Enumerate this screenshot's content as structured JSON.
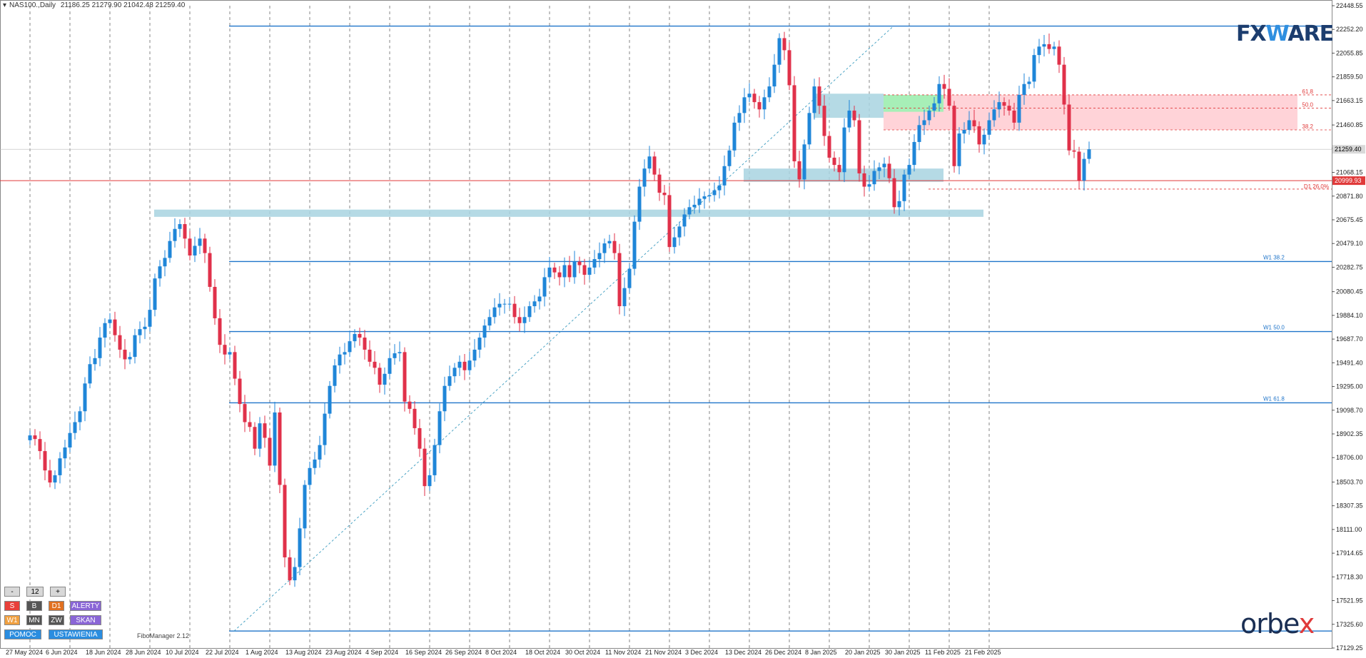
{
  "header": {
    "symbol": "NAS100.,Daily",
    "ohlc": "21186.25 21279.90 21042.48 21259.40"
  },
  "toolbar": {
    "minus": "-",
    "period": "12",
    "plus": "+",
    "row1": [
      {
        "label": "S",
        "color": "#e8403a"
      },
      {
        "label": "B",
        "color": "#555555"
      },
      {
        "label": "D1",
        "color": "#e07020"
      },
      {
        "label": "ALERTY",
        "color": "#8a66d6"
      }
    ],
    "row2": [
      {
        "label": "W1",
        "color": "#f0a040"
      },
      {
        "label": "MN",
        "color": "#555555"
      },
      {
        "label": "ZW",
        "color": "#555555"
      },
      {
        "label": "SKAN",
        "color": "#8a66d6"
      }
    ],
    "row3": [
      {
        "label": "POMOC",
        "color": "#2a8de0"
      },
      {
        "label": "USTAWIENIA",
        "color": "#2a8de0"
      }
    ]
  },
  "footer": {
    "label": "FiboManager 2.12"
  },
  "logos": {
    "fx_pre": "FX",
    "fx_w": "W",
    "fx_post": "ARE",
    "orbex_pre": "orbe",
    "orbex_x": "x"
  },
  "chart_data": {
    "type": "candlestick",
    "symbol": "NAS100.",
    "timeframe": "Daily",
    "ylim": [
      17129.25,
      22448.55
    ],
    "y_ticks": [
      "22448.55",
      "22252.20",
      "22055.85",
      "21859.50",
      "21663.15",
      "21460.85",
      "21268.40",
      "21068.15",
      "20871.80",
      "20675.45",
      "20479.10",
      "20282.75",
      "20080.45",
      "19884.10",
      "19687.70",
      "19491.40",
      "19295.00",
      "19098.70",
      "18902.35",
      "18706.00",
      "18503.70",
      "18307.35",
      "18111.00",
      "17914.65",
      "17718.30",
      "17521.95",
      "17325.60",
      "17129.25"
    ],
    "x_ticks": [
      "27 May 2024",
      "6 Jun 2024",
      "18 Jun 2024",
      "28 Jun 2024",
      "10 Jul 2024",
      "22 Jul 2024",
      "1 Aug 2024",
      "13 Aug 2024",
      "23 Aug 2024",
      "4 Sep 2024",
      "16 Sep 2024",
      "26 Sep 2024",
      "8 Oct 2024",
      "18 Oct 2024",
      "30 Oct 2024",
      "11 Nov 2024",
      "21 Nov 2024",
      "3 Dec 2024",
      "13 Dec 2024",
      "26 Dec 2024",
      "8 Jan 2025",
      "20 Jan 2025",
      "30 Jan 2025",
      "11 Feb 2025",
      "21 Feb 2025"
    ],
    "current_price": "21259.40",
    "red_price": "20999.93",
    "closes": [
      18890,
      18860,
      18760,
      18600,
      18500,
      18560,
      18700,
      18790,
      18910,
      19000,
      19090,
      19320,
      19480,
      19530,
      19700,
      19820,
      19850,
      19720,
      19600,
      19520,
      19540,
      19720,
      19770,
      19790,
      19930,
      20190,
      20290,
      20360,
      20500,
      20600,
      20640,
      20520,
      20380,
      20460,
      20520,
      20400,
      20120,
      19860,
      19640,
      19560,
      19580,
      19360,
      19150,
      19000,
      18960,
      18780,
      18990,
      18870,
      18640,
      19080,
      18480,
      17880,
      17690,
      17800,
      18120,
      18480,
      18620,
      18690,
      18810,
      19070,
      19300,
      19470,
      19560,
      19580,
      19670,
      19730,
      19700,
      19600,
      19500,
      19450,
      19310,
      19400,
      19530,
      19570,
      19580,
      19170,
      19110,
      18950,
      18780,
      18470,
      18560,
      18810,
      19090,
      19300,
      19380,
      19450,
      19500,
      19430,
      19510,
      19600,
      19700,
      19800,
      19870,
      19950,
      19980,
      19980,
      19980,
      19870,
      19820,
      19870,
      19960,
      20000,
      20040,
      20200,
      20280,
      20240,
      20200,
      20300,
      20200,
      20330,
      20300,
      20220,
      20280,
      20350,
      20400,
      20480,
      20500,
      20400,
      19960,
      20110,
      20270,
      20660,
      20950,
      21100,
      21200,
      21050,
      20900,
      20880,
      20450,
      20530,
      20620,
      20720,
      20780,
      20800,
      20850,
      20870,
      20880,
      20920,
      20960,
      21120,
      21250,
      21480,
      21560,
      21690,
      21720,
      21650,
      21590,
      21690,
      21780,
      21960,
      22180,
      22080,
      21790,
      21160,
      21010,
      21300,
      21560,
      21780,
      21620,
      21370,
      21190,
      21130,
      21070,
      21440,
      21580,
      21500,
      21060,
      20950,
      20970,
      21080,
      21110,
      21140,
      21020,
      20780,
      20830,
      21050,
      21130,
      21320,
      21460,
      21500,
      21580,
      21640,
      21800,
      21760,
      21620,
      21120,
      21390,
      21420,
      21500,
      21450,
      21300,
      21380,
      21500,
      21590,
      21650,
      21620,
      21580,
      21480,
      21710,
      21800,
      21820,
      22040,
      22110,
      22130,
      22090,
      22110,
      21960,
      21630,
      21250,
      21240,
      21000,
      21180,
      21259.4
    ],
    "fib_zones": [
      {
        "label": "61.8",
        "price": 21710
      },
      {
        "label": "50.0",
        "price": 21600
      },
      {
        "label": "38.2",
        "price": 21420
      }
    ],
    "levels": [
      {
        "label": "W1 38.2",
        "price": 20330
      },
      {
        "label": "W1 50.0",
        "price": 19750
      },
      {
        "label": "W1 61.8",
        "price": 19160
      }
    ],
    "d1_label": "D1 26.0%"
  }
}
